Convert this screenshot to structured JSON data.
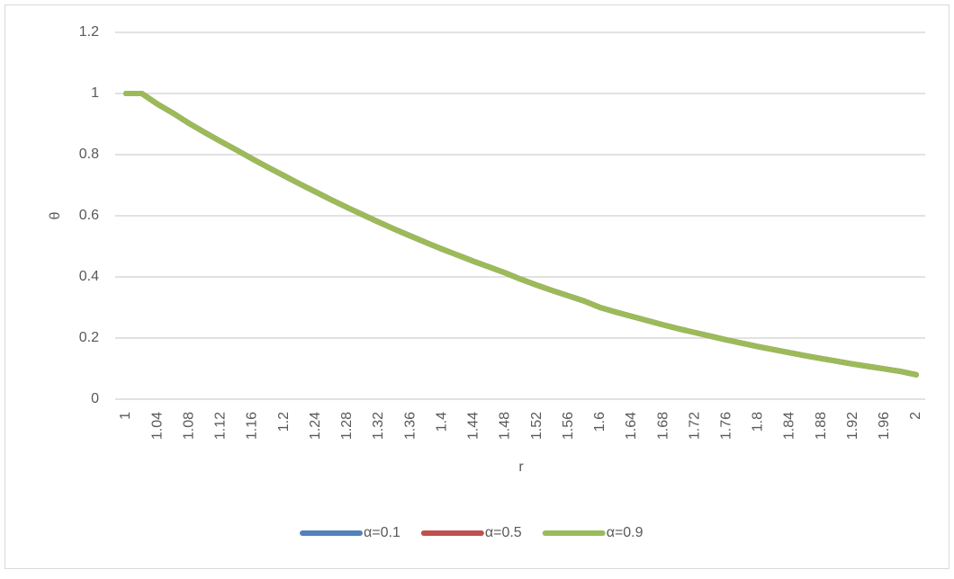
{
  "chart_data": {
    "type": "line",
    "y_label": "θ",
    "x_label": "r",
    "categories": [
      "1",
      null,
      "1.04",
      null,
      "1.08",
      null,
      "1.12",
      null,
      "1.16",
      null,
      "1.2",
      null,
      "1.24",
      null,
      "1.28",
      null,
      "1.32",
      null,
      "1.36",
      null,
      "1.4",
      null,
      "1.44",
      null,
      "1.48",
      null,
      "1.52",
      null,
      "1.56",
      null,
      "1.6",
      null,
      "1.64",
      null,
      "1.68",
      null,
      "1.72",
      null,
      "1.76",
      null,
      "1.8",
      null,
      "1.84",
      null,
      "1.88",
      null,
      "1.92",
      null,
      "1.96",
      null,
      "2"
    ],
    "series": [
      {
        "name": "α=0.1",
        "color": "#4f81bd",
        "values": [
          1,
          1,
          0.965,
          0.935,
          0.902,
          0.872,
          0.843,
          0.815,
          0.786,
          0.758,
          0.731,
          0.704,
          0.678,
          0.652,
          0.627,
          0.603,
          0.579,
          0.556,
          0.534,
          0.512,
          0.491,
          0.471,
          0.451,
          0.432,
          0.413,
          0.392,
          0.373,
          0.355,
          0.338,
          0.321,
          0.3,
          0.285,
          0.271,
          0.257,
          0.243,
          0.23,
          0.218,
          0.206,
          0.194,
          0.183,
          0.172,
          0.162,
          0.152,
          0.142,
          0.133,
          0.124,
          0.115,
          0.107,
          0.099,
          0.091,
          0.08
        ]
      },
      {
        "name": "α=0.5",
        "color": "#c0504d",
        "values": [
          1,
          1,
          0.965,
          0.935,
          0.902,
          0.872,
          0.843,
          0.815,
          0.786,
          0.758,
          0.731,
          0.704,
          0.678,
          0.652,
          0.627,
          0.603,
          0.579,
          0.556,
          0.534,
          0.512,
          0.491,
          0.471,
          0.451,
          0.432,
          0.413,
          0.392,
          0.373,
          0.355,
          0.338,
          0.321,
          0.3,
          0.285,
          0.271,
          0.257,
          0.243,
          0.23,
          0.218,
          0.206,
          0.194,
          0.183,
          0.172,
          0.162,
          0.152,
          0.142,
          0.133,
          0.124,
          0.115,
          0.107,
          0.099,
          0.091,
          0.08
        ]
      },
      {
        "name": "α=0.9",
        "color": "#9bbb59",
        "values": [
          1,
          1,
          0.965,
          0.935,
          0.902,
          0.872,
          0.843,
          0.815,
          0.786,
          0.758,
          0.731,
          0.704,
          0.678,
          0.652,
          0.627,
          0.603,
          0.579,
          0.556,
          0.534,
          0.512,
          0.491,
          0.471,
          0.451,
          0.432,
          0.413,
          0.392,
          0.373,
          0.355,
          0.338,
          0.321,
          0.3,
          0.285,
          0.271,
          0.257,
          0.243,
          0.23,
          0.218,
          0.206,
          0.194,
          0.183,
          0.172,
          0.162,
          0.152,
          0.142,
          0.133,
          0.124,
          0.115,
          0.107,
          0.099,
          0.091,
          0.08
        ]
      }
    ],
    "ylim": [
      0,
      1.2
    ],
    "yticks": [
      0,
      0.2,
      0.4,
      0.6,
      0.8,
      1,
      1.2
    ],
    "grid": true,
    "legend": "bottom"
  }
}
